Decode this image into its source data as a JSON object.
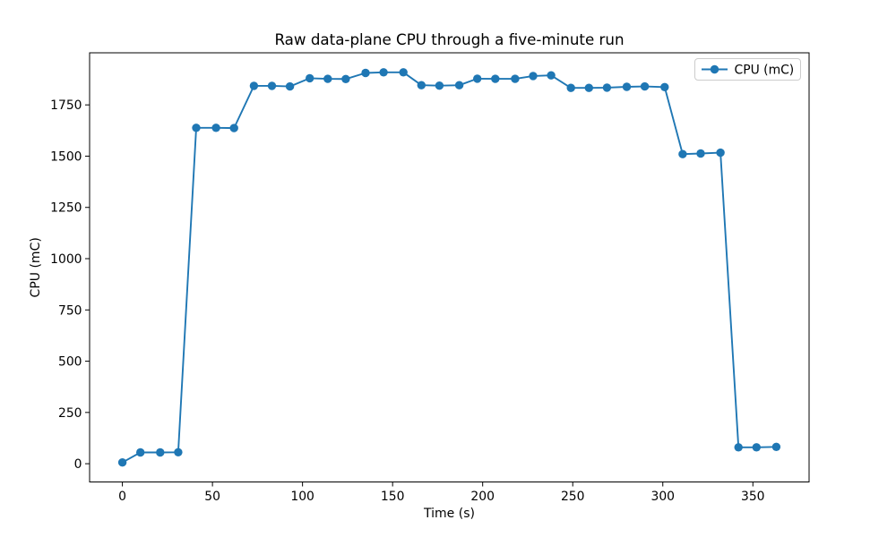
{
  "chart_data": {
    "type": "line",
    "title": "Raw data-plane CPU through a five-minute run",
    "xlabel": "Time (s)",
    "ylabel": "CPU (mC)",
    "xlim": [
      -18.2,
      381.2
    ],
    "ylim": [
      -89,
      2004
    ],
    "xticks": [
      0,
      50,
      100,
      150,
      200,
      250,
      300,
      350
    ],
    "yticks": [
      0,
      250,
      500,
      750,
      1000,
      1250,
      1500,
      1750
    ],
    "grid": false,
    "legend": {
      "position": "upper right"
    },
    "series": [
      {
        "name": "CPU (mC)",
        "color": "#1f77b4",
        "marker": "circle",
        "x": [
          0,
          10,
          21,
          31,
          41,
          52,
          62,
          73,
          83,
          93,
          104,
          114,
          124,
          135,
          145,
          156,
          166,
          176,
          187,
          197,
          207,
          218,
          228,
          238,
          249,
          259,
          269,
          280,
          290,
          301,
          311,
          321,
          332,
          342,
          352,
          363
        ],
        "y": [
          6,
          55,
          55,
          56,
          1638,
          1638,
          1637,
          1843,
          1843,
          1840,
          1880,
          1877,
          1876,
          1906,
          1909,
          1909,
          1846,
          1844,
          1846,
          1878,
          1877,
          1877,
          1891,
          1894,
          1833,
          1833,
          1834,
          1838,
          1840,
          1837,
          1510,
          1513,
          1517,
          80,
          80,
          82
        ]
      }
    ]
  }
}
